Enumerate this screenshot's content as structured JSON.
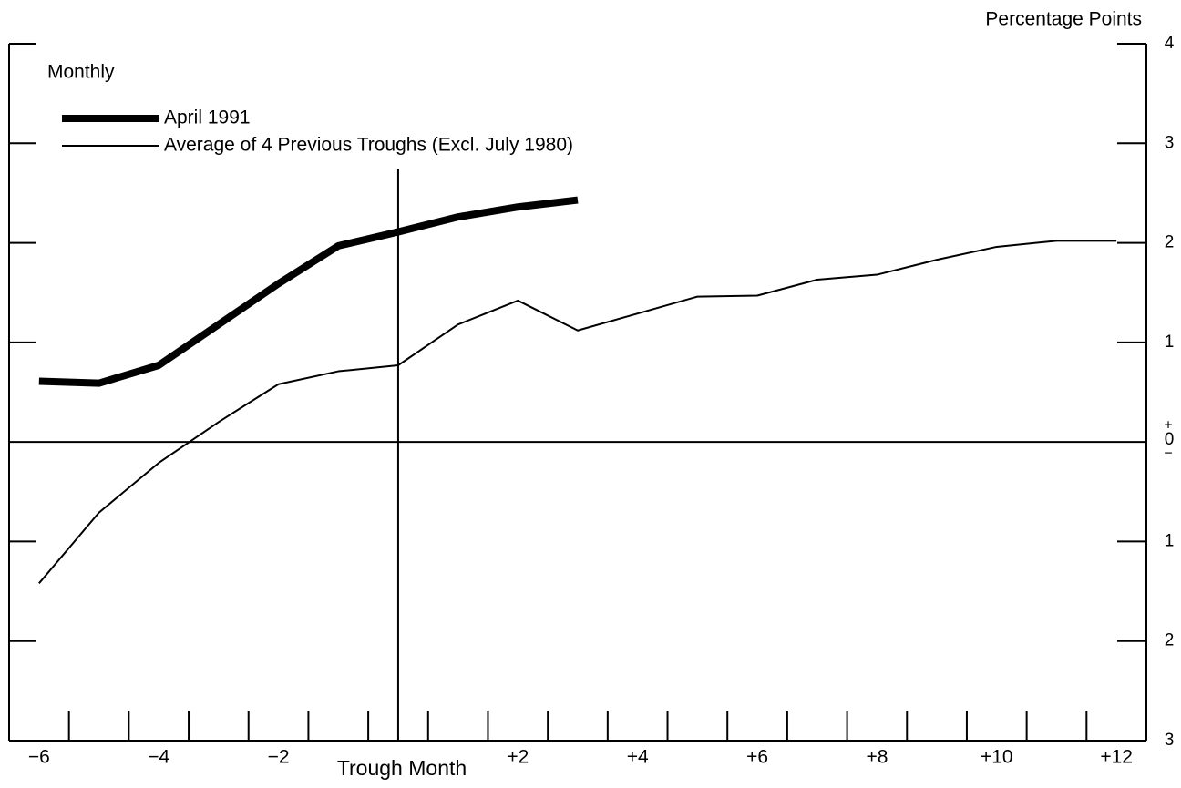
{
  "chart_data": {
    "type": "line",
    "subtitle": "Monthly",
    "y_axis_label": "Percentage Points",
    "x_axis_label": "Trough Month",
    "x": [
      -6,
      -5,
      -4,
      -3,
      -2,
      -1,
      0,
      1,
      2,
      3,
      4,
      5,
      6,
      7,
      8,
      9,
      10,
      11,
      12
    ],
    "series": [
      {
        "name": "April 1991",
        "color": "#000000",
        "values": [
          0.61,
          0.59,
          0.77,
          1.18,
          1.59,
          1.97,
          2.11,
          2.26,
          2.36,
          2.43,
          null,
          null,
          null,
          null,
          null,
          null,
          null,
          null,
          null
        ]
      },
      {
        "name": "Average of 4 Previous Troughs (Excl. July 1980)",
        "color": "#000000",
        "values": [
          -1.42,
          -0.71,
          -0.21,
          0.2,
          0.58,
          0.71,
          0.77,
          1.18,
          1.42,
          1.12,
          1.29,
          1.46,
          1.47,
          1.63,
          1.68,
          1.83,
          1.96,
          2.02,
          2.02
        ]
      }
    ],
    "xlim": [
      -6.5,
      12.5
    ],
    "ylim": [
      -3,
      4
    ],
    "xticks": [
      {
        "value": -6,
        "label": "−6"
      },
      {
        "value": -4,
        "label": "−4"
      },
      {
        "value": -2,
        "label": "−2"
      },
      {
        "value": 2,
        "label": "+2"
      },
      {
        "value": 4,
        "label": "+4"
      },
      {
        "value": 6,
        "label": "+6"
      },
      {
        "value": 8,
        "label": "+8"
      },
      {
        "value": 10,
        "label": "+10"
      },
      {
        "value": 12,
        "label": "+12"
      }
    ],
    "xticks_minor": [
      -5.5,
      -4.5,
      -3.5,
      -2.5,
      -1.5,
      -0.5,
      0.5,
      1.5,
      2.5,
      3.5,
      4.5,
      5.5,
      6.5,
      7.5,
      8.5,
      9.5,
      10.5,
      11.5
    ],
    "yticks": [
      4,
      3,
      2,
      1,
      0,
      {
        "value": -1,
        "label": "1"
      },
      {
        "value": -2,
        "label": "2"
      },
      {
        "value": -3,
        "label": "3"
      }
    ],
    "zero_signs": [
      "+",
      "−"
    ],
    "trough_line": 0,
    "legend": "top-left"
  }
}
